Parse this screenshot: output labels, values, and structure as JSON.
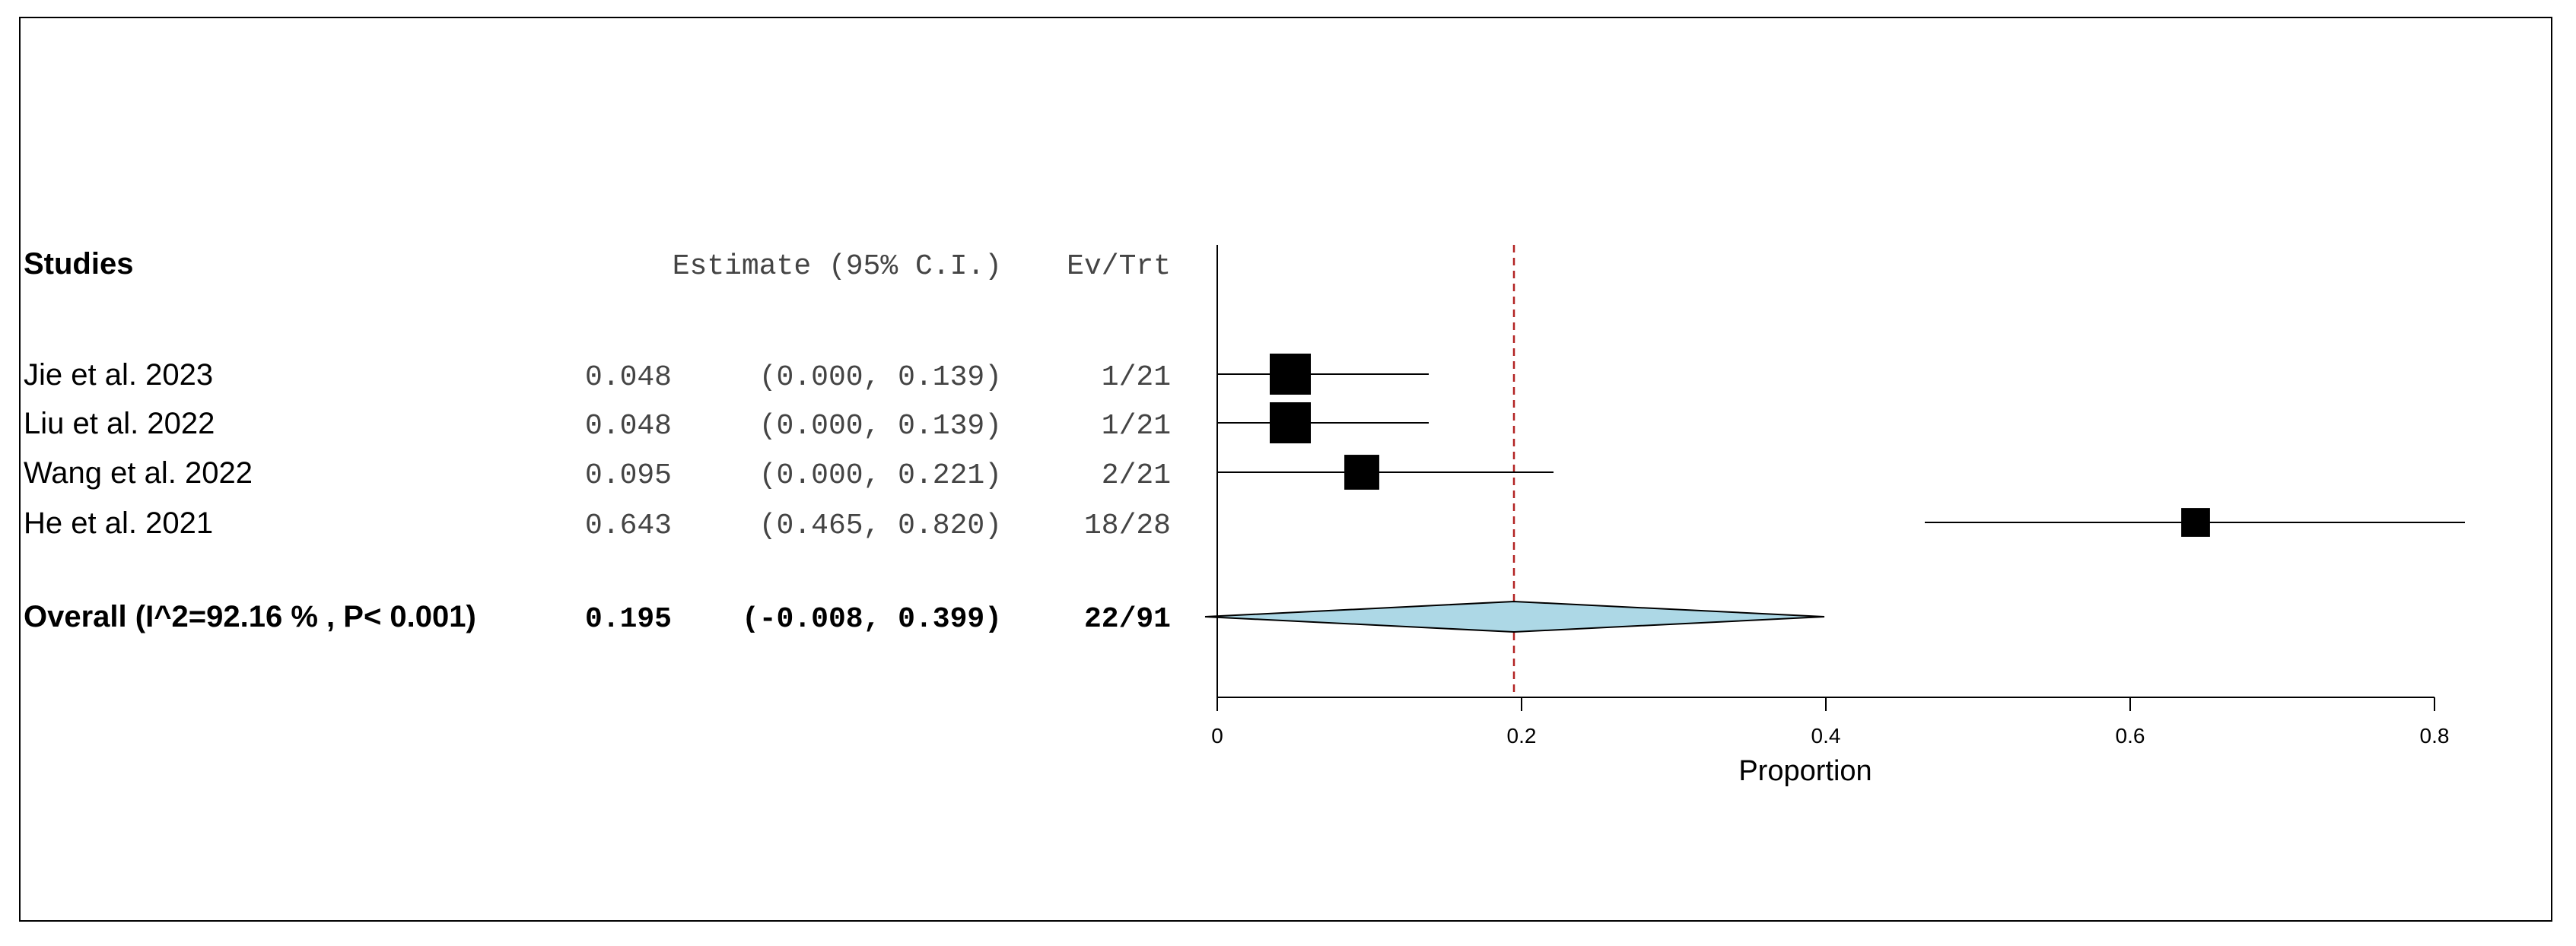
{
  "chart_data": {
    "type": "forest",
    "headers": {
      "studies": "Studies",
      "estimate": "Estimate (95% C.I.)",
      "evtrt": "Ev/Trt"
    },
    "studies": [
      {
        "name": "Jie et al. 2023",
        "estimate": 0.048,
        "lower": 0.0,
        "upper": 0.139,
        "est_text": "0.048",
        "ci_text": "(0.000, 0.139)",
        "evtrt": "1/21",
        "weight": 1.0
      },
      {
        "name": "Liu et al. 2022",
        "estimate": 0.048,
        "lower": 0.0,
        "upper": 0.139,
        "est_text": "0.048",
        "ci_text": "(0.000, 0.139)",
        "evtrt": "1/21",
        "weight": 1.0
      },
      {
        "name": "Wang et al. 2022",
        "estimate": 0.095,
        "lower": 0.0,
        "upper": 0.221,
        "est_text": "0.095",
        "ci_text": "(0.000, 0.221)",
        "evtrt": "2/21",
        "weight": 0.85
      },
      {
        "name": "He et al. 2021",
        "estimate": 0.643,
        "lower": 0.465,
        "upper": 0.82,
        "est_text": "0.643",
        "ci_text": "(0.465, 0.820)",
        "evtrt": "18/28",
        "weight": 0.7
      }
    ],
    "overall": {
      "label": "Overall (I^2=92.16 % , P< 0.001)",
      "estimate": 0.195,
      "lower": -0.008,
      "upper": 0.399,
      "est_text": "0.195",
      "ci_text": "(-0.008, 0.399)",
      "evtrt": "22/91"
    },
    "xaxis": {
      "label": "Proportion",
      "range": [
        0,
        0.8
      ],
      "ticks": [
        0,
        0.2,
        0.4,
        0.6,
        0.8
      ],
      "tick_labels": [
        "0",
        "0.2",
        "0.4",
        "0.6",
        "0.8"
      ]
    },
    "colors": {
      "diamond_fill": "#add8e6",
      "ref_line": "#b22222",
      "marker": "#000000"
    }
  }
}
